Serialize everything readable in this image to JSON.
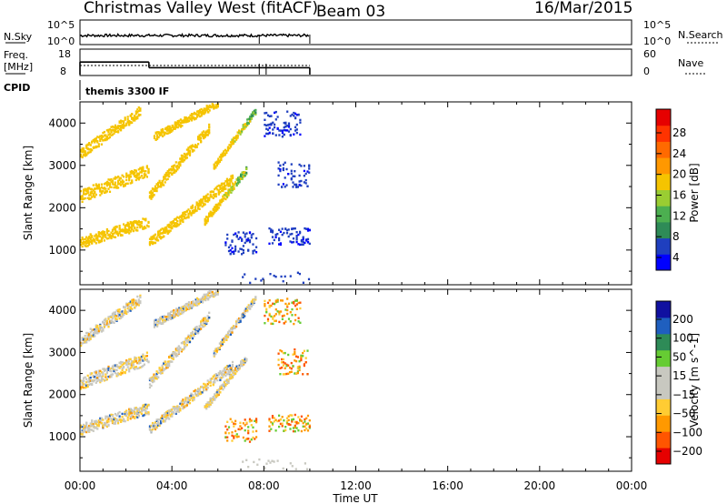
{
  "header": {
    "station": "Christmas Valley West (fitACF)",
    "beam": "Beam 03",
    "date": "16/Mar/2015"
  },
  "panels": {
    "nsky": {
      "label": "N.Sky",
      "right_label": "N.Search",
      "ticks": [
        "10^5",
        "10^0"
      ],
      "right_ticks": [
        "10^5",
        "10^0"
      ]
    },
    "freq": {
      "label_top": "Freq.",
      "label_bottom": "[MHz]",
      "ticks": [
        "18",
        "8"
      ],
      "right_label": "Nave",
      "right_ticks": [
        "60",
        "0"
      ]
    },
    "cpid": {
      "label": "CPID",
      "value": "themis 3300 IF"
    }
  },
  "colors": {
    "power_scale": [
      "#0000ff",
      "#1f3fbf",
      "#2e8b57",
      "#4caf50",
      "#9acd32",
      "#f5c400",
      "#ff9800",
      "#ff6a00",
      "#ff3300",
      "#e60000"
    ],
    "velocity_scale": [
      "#e60000",
      "#ff5500",
      "#ff9900",
      "#ffcc33",
      "#c8c8c0",
      "#c8c8c0",
      "#66cc33",
      "#2e8b57",
      "#1f5fbf",
      "#1010a0"
    ]
  },
  "chart_data": [
    {
      "type": "heatmap",
      "name": "power",
      "ylabel": "Slant Range [km]",
      "colorbar_label": "Power [dB]",
      "colorbar_ticks": [
        "28",
        "24",
        "20",
        "16",
        "12",
        "8",
        "4"
      ],
      "x_ticks": [
        "00:00",
        "04:00",
        "08:00",
        "12:00",
        "16:00",
        "20:00",
        "00:00"
      ],
      "y_ticks": [
        "4000",
        "3000",
        "2000",
        "1000"
      ],
      "xlim": [
        0,
        24
      ],
      "ylim": [
        180,
        4500
      ],
      "colorbar_range": [
        0,
        32
      ]
    },
    {
      "type": "heatmap",
      "name": "velocity",
      "xlabel": "Time UT",
      "ylabel": "Slant Range [km]",
      "colorbar_label": "Velocity [m s^-1]",
      "colorbar_ticks": [
        "200",
        "100",
        "50",
        "15",
        "−15",
        "−50",
        "−100",
        "−200"
      ],
      "x_ticks": [
        "00:00",
        "04:00",
        "08:00",
        "12:00",
        "16:00",
        "20:00",
        "00:00"
      ],
      "y_ticks": [
        "4000",
        "3000",
        "2000",
        "1000"
      ],
      "xlim": [
        0,
        24
      ],
      "ylim": [
        180,
        4500
      ]
    }
  ],
  "freq_series": [
    {
      "t0": 0.0,
      "t1": 3.0,
      "value": 14
    },
    {
      "t0": 3.0,
      "t1": 10.0,
      "value": 11.3
    }
  ],
  "data_end_hour": 10
}
